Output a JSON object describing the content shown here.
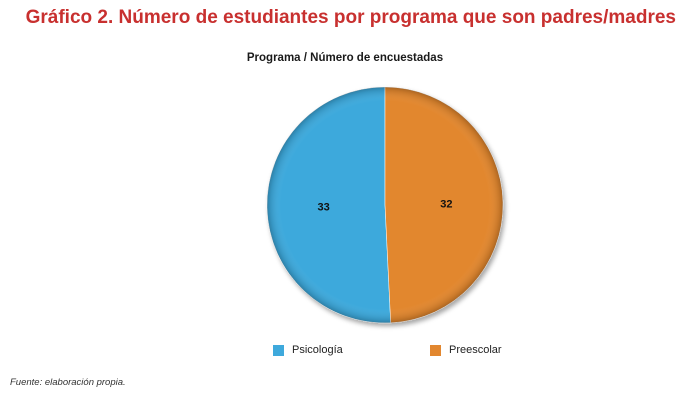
{
  "figure": {
    "title": "Gráfico 2. Número de estudiantes por programa que son padres/madres",
    "source": "Fuente: elaboración propia."
  },
  "chart_data": {
    "type": "pie",
    "title": "Programa / Número de encuestadas",
    "categories": [
      "Psicología",
      "Preescolar"
    ],
    "values": [
      33,
      32
    ],
    "colors": [
      "#3ea9dc",
      "#e2872f"
    ],
    "data_labels": [
      "33",
      "32"
    ],
    "legend_position": "bottom"
  }
}
